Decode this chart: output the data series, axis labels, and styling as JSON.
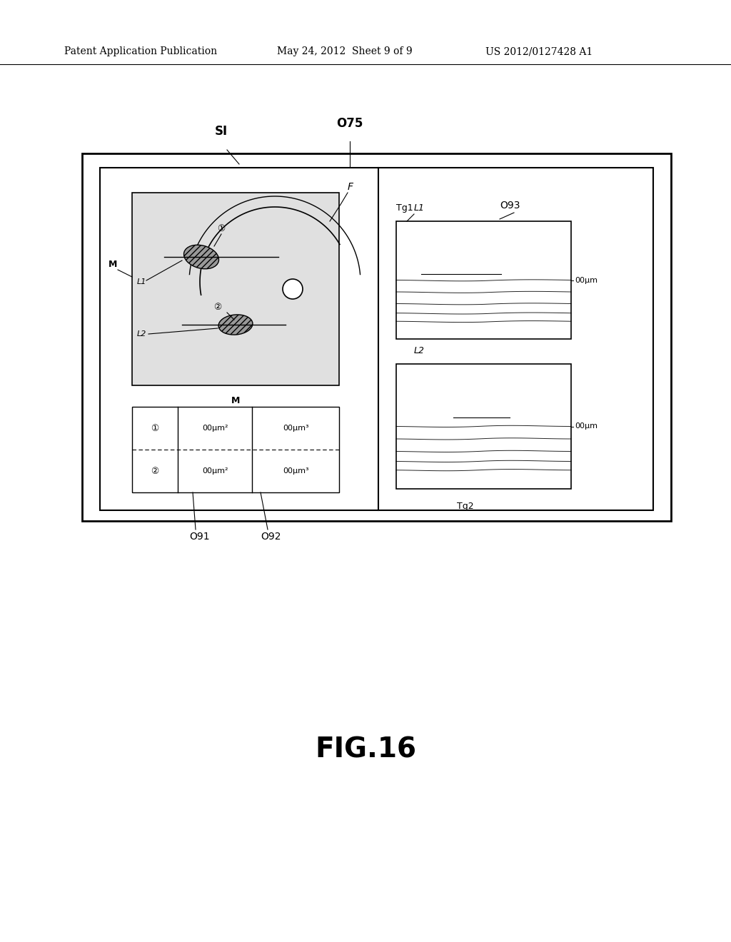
{
  "bg_color": "#ffffff",
  "header_left": "Patent Application Publication",
  "header_mid": "May 24, 2012  Sheet 9 of 9",
  "header_right": "US 2012/0127428 A1",
  "figure_label": "FIG.16",
  "label_SI": "SI",
  "label_O75": "O75",
  "label_F": "F",
  "label_M_left": "M",
  "label_M_bottom": "M",
  "label_L1_fundus": "L1",
  "label_L2_fundus": "L2",
  "label_L1_oct": "L1",
  "label_L2_oct": "L2",
  "label_Tg1": "Tg1",
  "label_Tg2": "Tg2",
  "label_O91": "O91",
  "label_O92": "O92",
  "label_O93": "O93",
  "label_00um_top": "00μm",
  "label_00um_bot": "00μm",
  "circle1_text": "①",
  "circle2_text": "②",
  "table_row1_col1": "00μm²",
  "table_row1_col2": "00μm³",
  "table_row2_col1": "00μm²",
  "table_row2_col2": "00μm³"
}
